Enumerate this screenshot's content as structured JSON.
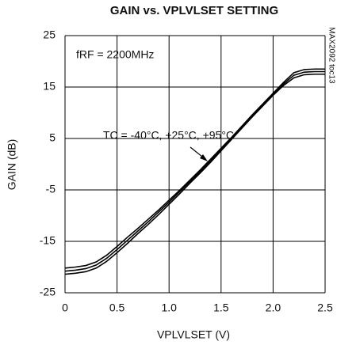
{
  "chart_data": {
    "type": "line",
    "title": "GAIN vs. VPLVLSET SETTING",
    "x_label": "VPLVLSET (V)",
    "y_label": "GAIN (dB)",
    "annotations": [
      "fRF = 2200MHz",
      "TC = -40°C, +25°C, +95°C",
      "MAX2092 toc13"
    ],
    "x": [
      0,
      0.1,
      0.2,
      0.3,
      0.4,
      0.5,
      0.6,
      0.7,
      0.8,
      0.9,
      1.0,
      1.1,
      1.2,
      1.3,
      1.4,
      1.5,
      1.6,
      1.7,
      1.8,
      1.9,
      2.0,
      2.1,
      2.2,
      2.3,
      2.4,
      2.5
    ],
    "series": [
      {
        "color": "#000000",
        "values": [
          -20.2,
          -20.0,
          -19.7,
          -19.0,
          -17.7,
          -16.0,
          -14.2,
          -12.5,
          -10.7,
          -8.9,
          -7.0,
          -5.1,
          -3.1,
          -1.1,
          1.0,
          3.1,
          5.2,
          7.4,
          9.6,
          11.7,
          13.8,
          15.9,
          17.8,
          18.4,
          18.5,
          18.5
        ]
      },
      {
        "color": "#000000",
        "values": [
          -20.8,
          -20.6,
          -20.3,
          -19.6,
          -18.3,
          -16.6,
          -14.8,
          -13.0,
          -11.2,
          -9.3,
          -7.4,
          -5.4,
          -3.4,
          -1.4,
          0.7,
          2.9,
          5.0,
          7.2,
          9.4,
          11.5,
          13.6,
          15.6,
          17.3,
          17.9,
          18.0,
          18.0
        ]
      },
      {
        "color": "#000000",
        "values": [
          -21.4,
          -21.2,
          -20.9,
          -20.2,
          -18.9,
          -17.2,
          -15.4,
          -13.5,
          -11.7,
          -9.8,
          -7.8,
          -5.8,
          -3.7,
          -1.7,
          0.4,
          2.6,
          4.8,
          7.0,
          9.2,
          11.3,
          13.4,
          15.3,
          16.8,
          17.4,
          17.5,
          17.5
        ]
      }
    ],
    "xlim": [
      0,
      2.5
    ],
    "xticks": [
      0,
      0.5,
      {
        "value": 1,
        "label": "1.0"
      },
      1.5,
      {
        "value": 2,
        "label": "2.0"
      },
      2.5
    ],
    "ylim": [
      -25,
      25
    ],
    "yticks": [
      -25,
      -15,
      -5,
      5,
      15,
      25
    ],
    "grid": true
  }
}
